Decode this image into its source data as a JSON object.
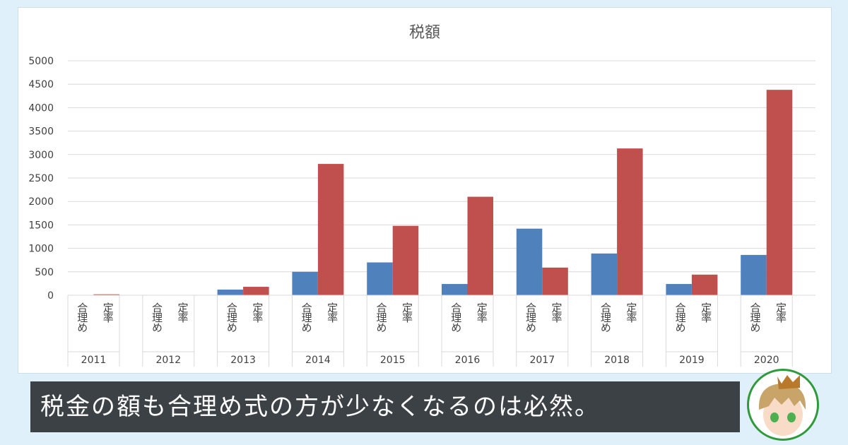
{
  "chart_data": {
    "type": "bar",
    "title": "税額",
    "categories": [
      "2011",
      "2012",
      "2013",
      "2014",
      "2015",
      "2016",
      "2017",
      "2018",
      "2019",
      "2020"
    ],
    "series": [
      {
        "name": "合理め",
        "color": "#4f81bd",
        "values": [
          0,
          0,
          120,
          500,
          700,
          240,
          1420,
          890,
          240,
          860
        ]
      },
      {
        "name": "定率",
        "color": "#c0504d",
        "values": [
          20,
          0,
          180,
          2800,
          1480,
          2100,
          590,
          3130,
          440,
          4380
        ]
      }
    ],
    "yticks": [
      "0",
      "500",
      "1000",
      "1500",
      "2000",
      "2500",
      "3000",
      "3500",
      "4000",
      "4500",
      "5000"
    ],
    "ylim": [
      0,
      5000
    ],
    "grid": true,
    "xlabel": "",
    "ylabel": ""
  },
  "caption": "税金の額も合理め式の方が少なくなるのは必然。",
  "avatar_icon": "crowned-character-avatar"
}
